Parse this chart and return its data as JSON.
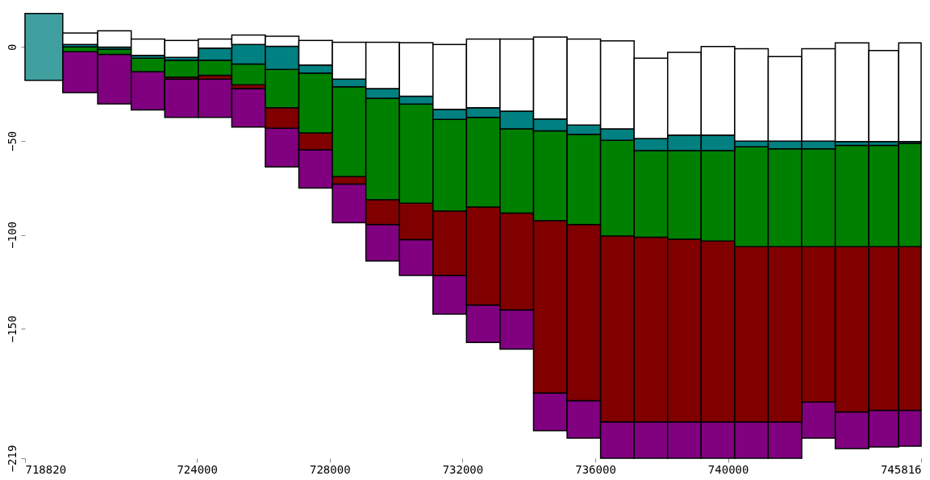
{
  "chart_data": {
    "type": "bar",
    "x": [
      719410,
      720505,
      721515,
      722525,
      723535,
      724545,
      725555,
      726565,
      727575,
      728585,
      729595,
      730605,
      731615,
      732625,
      733635,
      734645,
      735655,
      736665,
      737675,
      738685,
      739695,
      740705,
      741715,
      742725,
      743735,
      744745,
      745533
    ],
    "series": [
      {
        "color": "#800080",
        "base": [
          null,
          -24.3,
          -30.3,
          -33.5,
          -37.5,
          -37.5,
          -42.6,
          -63.9,
          -75.1,
          -93.6,
          -113.9,
          -121.7,
          -142.2,
          -157.4,
          -160.9,
          -204.3,
          -208.3,
          -219,
          -219,
          -219,
          -219,
          -219,
          -219,
          -208.3,
          -213.9,
          -213,
          -212.6
        ],
        "values": [
          null,
          21.7,
          26.4,
          20.3,
          20.4,
          20.4,
          20.4,
          20.6,
          20.3,
          20.6,
          19.4,
          19.1,
          20.5,
          20,
          20.9,
          20,
          20,
          19.4,
          19.4,
          19.4,
          19.4,
          19.4,
          19.4,
          19.2,
          19.6,
          19.5,
          19.1
        ]
      },
      {
        "color": "#800000",
        "base": [
          null,
          null,
          null,
          null,
          -17.1,
          -17.1,
          -22.2,
          -43.3,
          -54.8,
          -73,
          -94.5,
          -102.6,
          -121.7,
          -137.4,
          -140,
          -184.3,
          -188.3,
          -199.6,
          -199.6,
          -199.6,
          -199.6,
          -199.6,
          -199.6,
          -189.1,
          -194.3,
          -193.5,
          -193.5
        ],
        "values": [
          null,
          null,
          null,
          null,
          1,
          2,
          2.1,
          11,
          9,
          4,
          13.2,
          19.4,
          34.4,
          52.2,
          51.6,
          91.8,
          93.8,
          99,
          98.3,
          97.2,
          96.3,
          93.3,
          93.3,
          82.8,
          88,
          87.2,
          87.2
        ]
      },
      {
        "color": "#008000",
        "base": [
          null,
          -2.6,
          -3.9,
          -13.2,
          -16.1,
          -15.1,
          -20.1,
          -32.3,
          -45.8,
          -69,
          -81.3,
          -83.2,
          -87.3,
          -85.2,
          -88.4,
          -92.5,
          -94.5,
          -100.6,
          -101.3,
          -102.4,
          -103.3,
          -106.3,
          -106.3,
          -106.3,
          -106.3,
          -106.3,
          -106.3
        ],
        "values": [
          null,
          2.6,
          2.6,
          7.2,
          9.1,
          8.1,
          11,
          20.3,
          31.9,
          47.8,
          54,
          52.8,
          48.7,
          47.7,
          44.8,
          47.8,
          48,
          50.9,
          46.1,
          47.2,
          48.1,
          53.1,
          52.1,
          52.1,
          53.9,
          53.9,
          55
        ]
      },
      {
        "colors": [
          "#40a0a0",
          "#008080",
          "#008080",
          "#008080",
          "#008080",
          "#008080",
          "#008080",
          "#008080",
          "#008080",
          "#008080",
          "#008080",
          "#008080",
          "#008080",
          "#008080",
          "#008080",
          "#008080",
          "#008080",
          "#008080",
          "#008080",
          "#008080",
          "#008080",
          "#008080",
          "#008080",
          "#008080",
          "#008080",
          "#008080",
          "#008080"
        ],
        "base": [
          -17.8,
          0,
          -1.3,
          -6,
          -7,
          -7,
          -9.1,
          -12,
          -13.9,
          -21.2,
          -27.3,
          -30.4,
          -38.6,
          -37.5,
          -43.6,
          -44.7,
          -46.5,
          -49.7,
          -55.2,
          -55.2,
          -55.2,
          -53.2,
          -54.2,
          -54.2,
          -52.4,
          -52.4,
          -51.3
        ],
        "values": [
          35.6,
          1.3,
          1.2,
          1.5,
          1.5,
          6.4,
          10.4,
          12.3,
          4.3,
          4.1,
          5.1,
          4.2,
          5.4,
          5.2,
          9.4,
          6.3,
          4.9,
          6.1,
          6.4,
          8.3,
          8.3,
          3.1,
          4.1,
          4.1,
          2,
          2,
          0.9
        ]
      },
      {
        "color": "#ffffff",
        "base": [
          null,
          1.3,
          -0.1,
          -4.5,
          -5.5,
          -0.6,
          1.3,
          0.3,
          -9.6,
          -17.1,
          -22.2,
          -26.2,
          -33.2,
          -32.3,
          -34.2,
          -38.4,
          -41.6,
          -43.6,
          -48.8,
          -46.9,
          -46.9,
          -50.1,
          -50.1,
          -50.1,
          -50.4,
          -50.4,
          -50.4
        ],
        "values": [
          null,
          6.1,
          8.7,
          8.7,
          9,
          4.8,
          5.1,
          5.4,
          13.1,
          19.6,
          24.7,
          28.5,
          34.5,
          36.5,
          38.4,
          43.7,
          45.8,
          46.8,
          42.8,
          44,
          47.1,
          49.2,
          45,
          49.2,
          52.6,
          48.5,
          52.6
        ]
      }
    ],
    "xlim": [
      718820,
      745816
    ],
    "xticks": [
      718820,
      724000,
      728000,
      732000,
      736000,
      740000,
      745816
    ],
    "ylim": [
      -219,
      19
    ],
    "yticks": [
      0,
      -50,
      -100,
      -150,
      -219
    ],
    "grid": false,
    "legend": false
  }
}
